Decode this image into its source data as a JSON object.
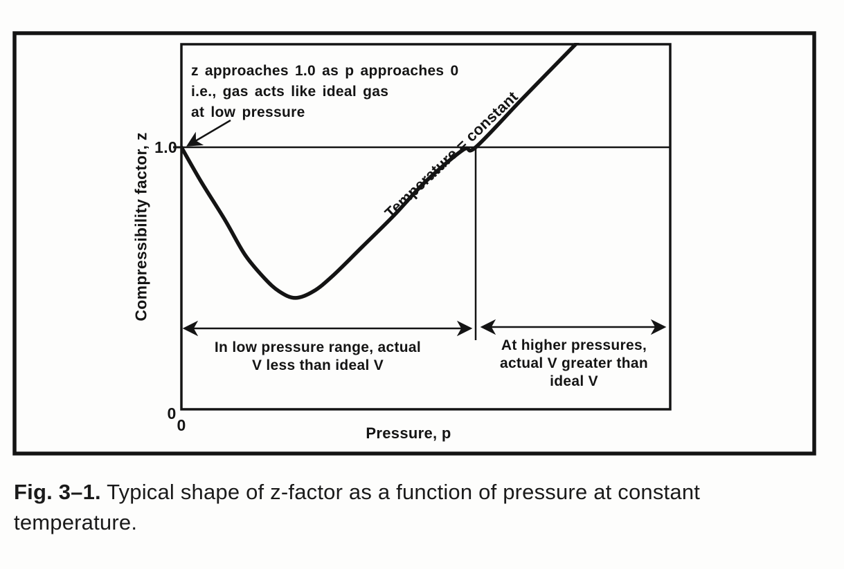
{
  "figure": {
    "y_axis": {
      "label": "Compressibility factor, z",
      "tick_1": "1.0",
      "tick_0": "0"
    },
    "x_axis": {
      "label": "Pressure, p",
      "tick_0": "0"
    },
    "curve_label": "Temperature = constant",
    "annotation_ideal_gas": {
      "lines": [
        "z approaches 1.0 as p approaches 0",
        "i.e., gas acts like ideal gas",
        "at low pressure"
      ]
    },
    "region_low_pressure": {
      "lines": [
        "In low pressure range, actual",
        "V less than ideal V"
      ]
    },
    "region_high_pressure": {
      "lines": [
        "At higher pressures,",
        "actual V greater than",
        "ideal V"
      ]
    }
  },
  "caption": {
    "label": "Fig. 3–1.",
    "text": "Typical shape of z-factor as a function of pressure at constant temperature."
  },
  "colors": {
    "ink": "#141414",
    "paper": "#fdfdfc"
  },
  "chart_data": {
    "type": "line",
    "title": "",
    "xlabel": "Pressure, p",
    "ylabel": "Compressibility factor, z",
    "axis_note": "Axes carry no numeric scale except 0 on both axes and 1.0 on the z axis; pressure expressed in arbitrary units 0-10.",
    "xlim": [
      0,
      10
    ],
    "ylim": [
      0,
      1.4
    ],
    "xticks_labeled": [
      0
    ],
    "yticks_labeled": [
      0,
      1.0
    ],
    "grid": false,
    "legend": "none",
    "series": [
      {
        "name": "z(p) at Temperature = constant",
        "x": [
          0,
          0.4,
          0.9,
          1.3,
          1.7,
          2.0,
          2.33,
          2.7,
          3.1,
          3.7,
          4.35,
          5.0,
          5.76,
          6.02,
          7.0,
          8.1
        ],
        "y": [
          1.0,
          0.87,
          0.72,
          0.59,
          0.5,
          0.45,
          0.425,
          0.45,
          0.51,
          0.62,
          0.74,
          0.87,
          0.99,
          1.0,
          1.19,
          1.4
        ]
      }
    ],
    "reference_lines": [
      {
        "axis": "y",
        "value": 1.0,
        "meaning": "ideal-gas behavior, z = 1.0"
      }
    ],
    "key_points": {
      "start": {
        "p": 0,
        "z": 1.0
      },
      "minimum": {
        "p": 2.33,
        "z": 0.425
      },
      "recross_ideal": {
        "p": 6.02,
        "z": 1.0
      }
    },
    "regions": [
      {
        "p_range": [
          0,
          6.02
        ],
        "label": "In low pressure range, actual V less than ideal V"
      },
      {
        "p_range": [
          6.02,
          10
        ],
        "label": "At higher pressures, actual V greater than ideal V"
      }
    ]
  }
}
